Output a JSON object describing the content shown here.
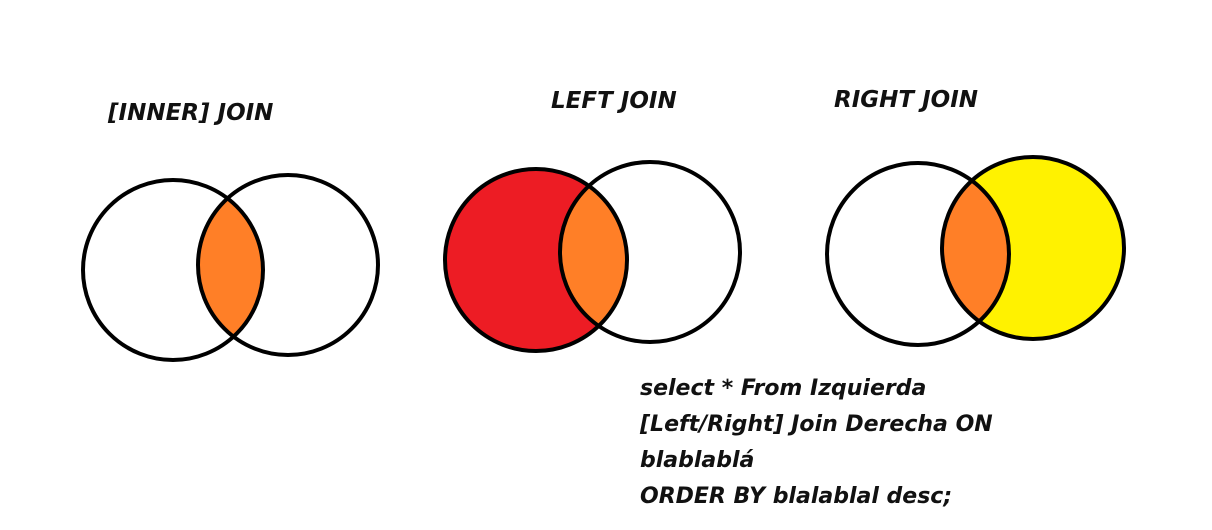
{
  "diagrams": [
    {
      "title": "[INNER] JOIN"
    },
    {
      "title": "LEFT JOIN"
    },
    {
      "title": "RIGHT JOIN"
    }
  ],
  "colors": {
    "outline": "#000000",
    "intersection": "#ff7f27",
    "left_only": "#ed1c24",
    "right_only": "#fff200",
    "background": "#ffffff"
  },
  "sql_lines": [
    "select * From Izquierda",
    "[Left/Right] Join Derecha ON",
    "blablablá",
    "ORDER BY blalablal desc;"
  ]
}
